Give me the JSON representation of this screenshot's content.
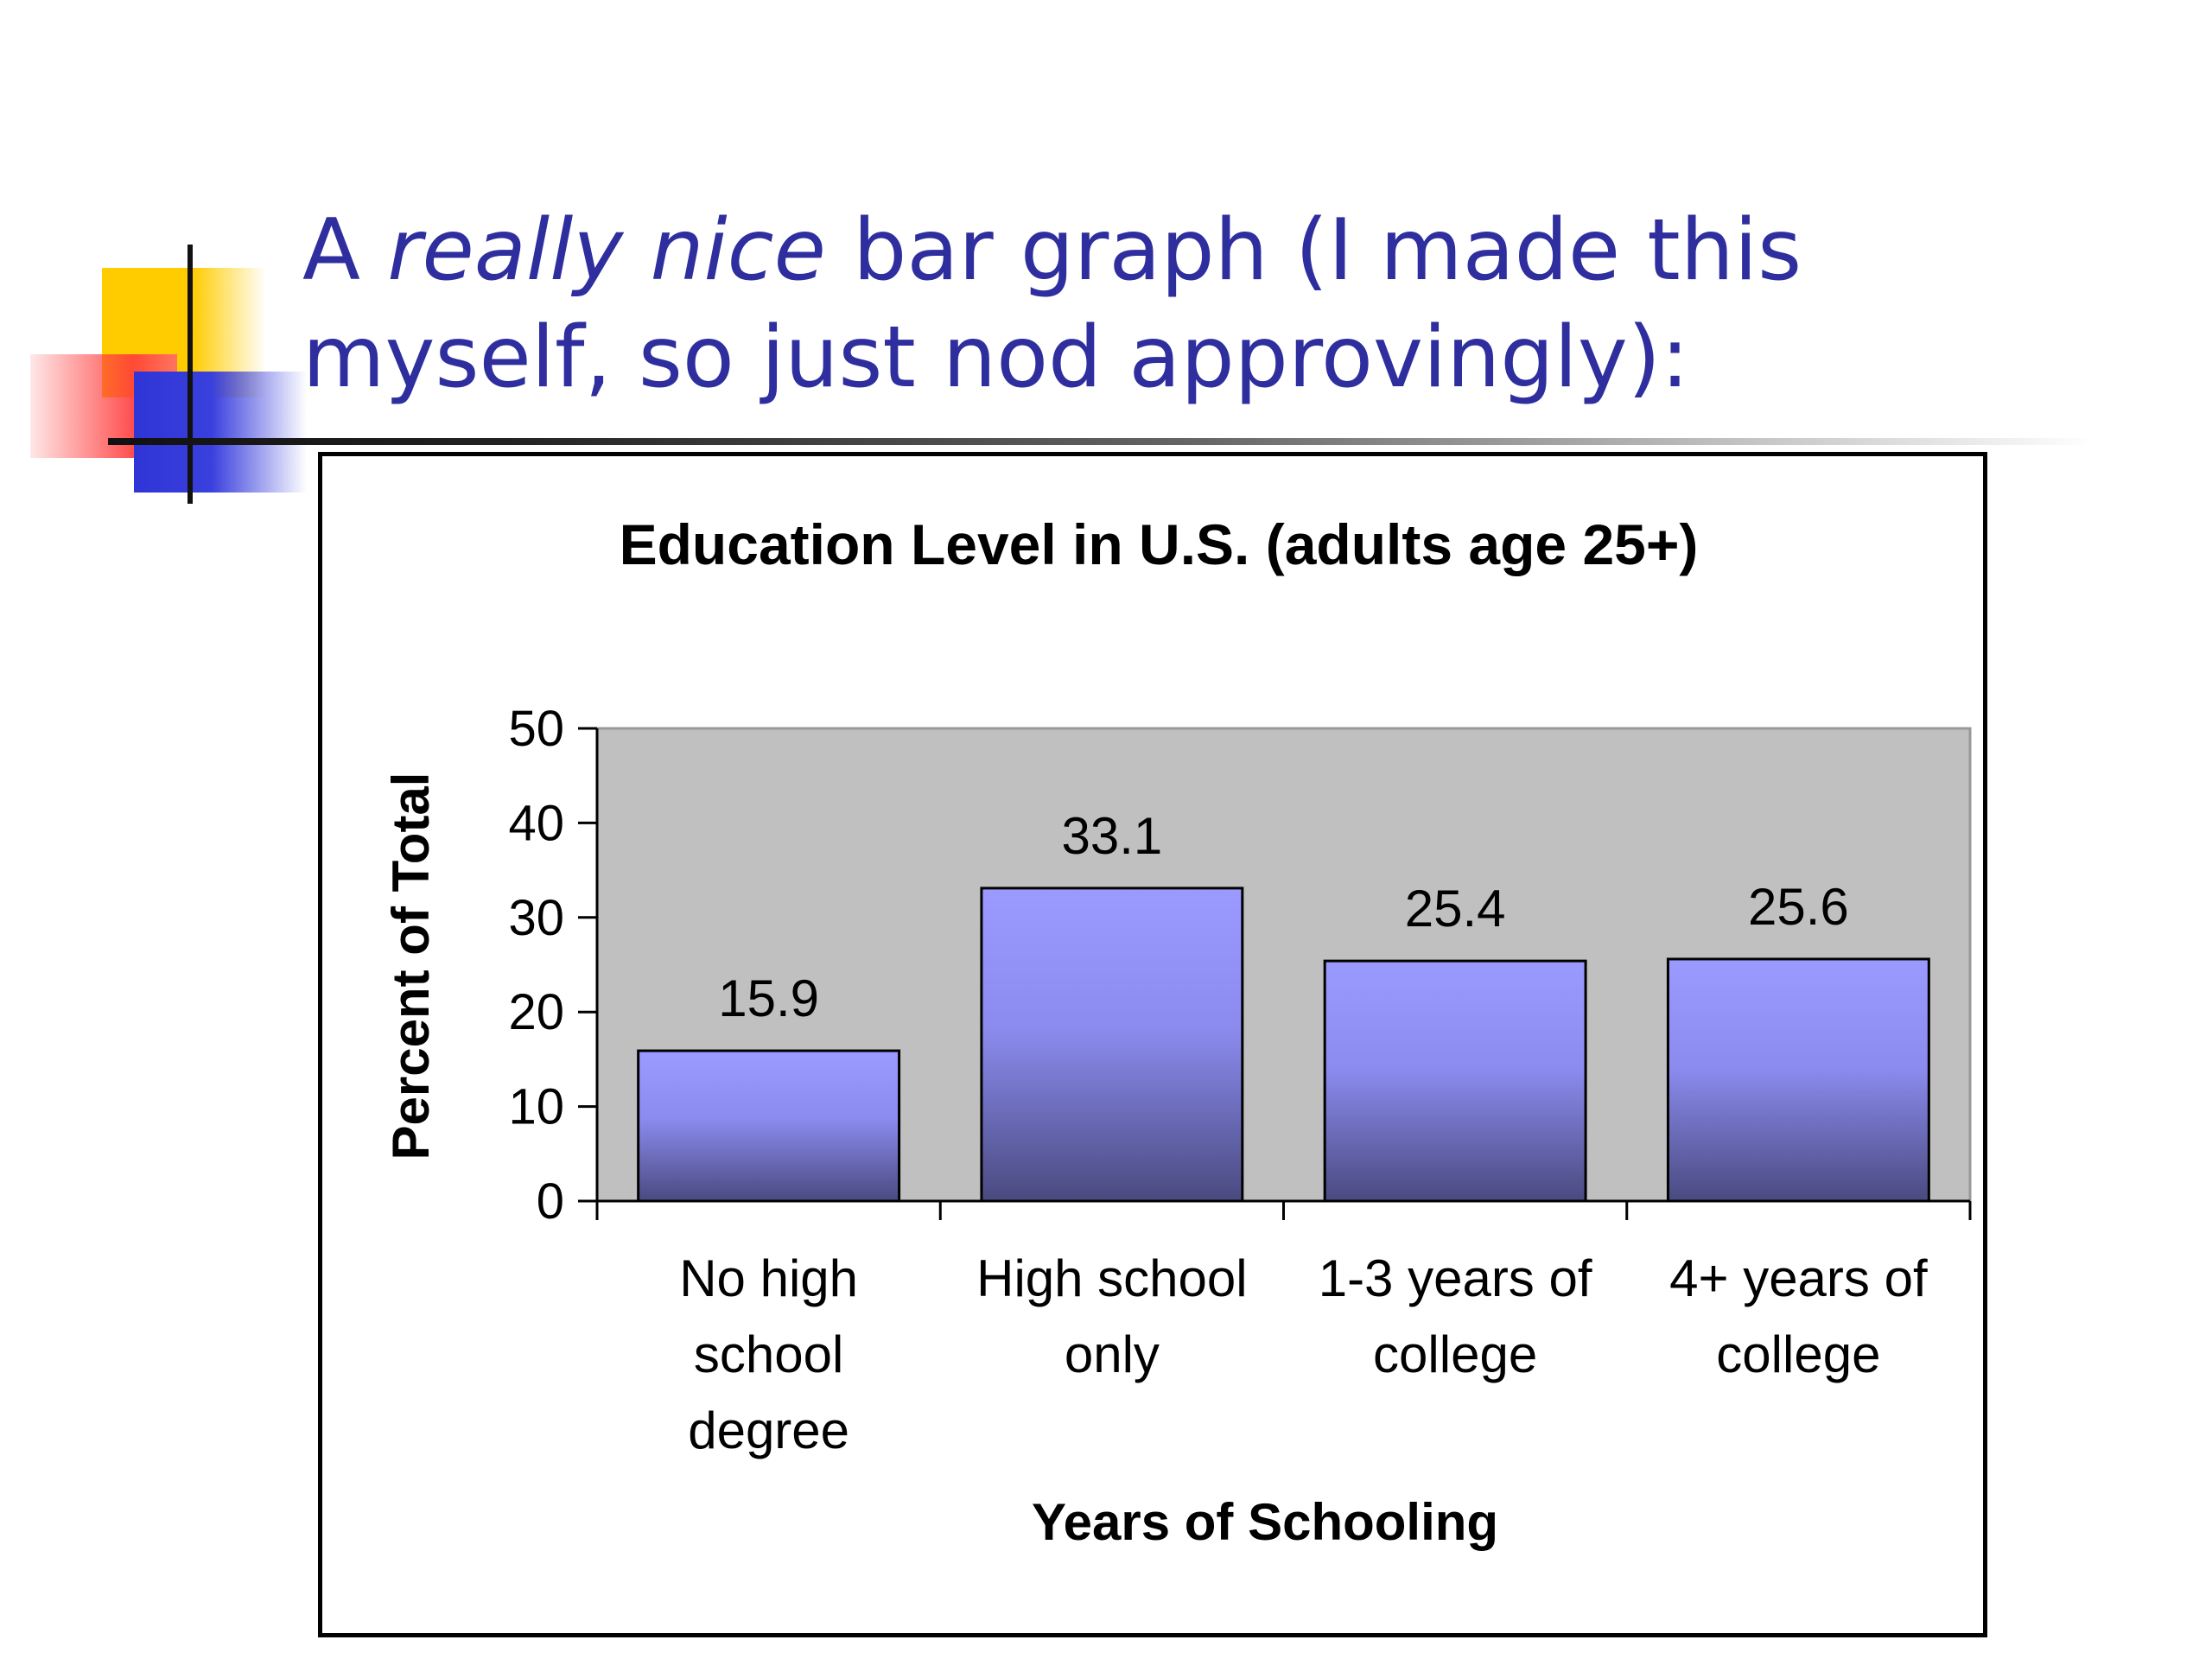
{
  "slide": {
    "title_part1": "A ",
    "title_italic": "really nice",
    "title_part2": " bar graph (I made this myself, so just nod approvingly):"
  },
  "colors": {
    "title": "#2e2e9e",
    "plot_bg": "#c0c0c0",
    "bar_top": "#9a9aff",
    "bar_bottom": "#4a4a80",
    "axis": "#000000"
  },
  "chart_data": {
    "type": "bar",
    "title": "Education Level in U.S. (adults age 25+)",
    "xlabel": "Years of Schooling",
    "ylabel": "Percent of Total",
    "categories": [
      [
        "No high",
        "school",
        "degree"
      ],
      [
        "High school",
        "only"
      ],
      [
        "1-3 years of",
        "college"
      ],
      [
        "4+ years of",
        "college"
      ]
    ],
    "values": [
      15.9,
      33.1,
      25.4,
      25.6
    ],
    "data_labels": [
      "15.9",
      "33.1",
      "25.4",
      "25.6"
    ],
    "ylim": [
      0,
      50
    ],
    "yticks": [
      0,
      10,
      20,
      30,
      40,
      50
    ],
    "grid": false,
    "legend": "none"
  }
}
